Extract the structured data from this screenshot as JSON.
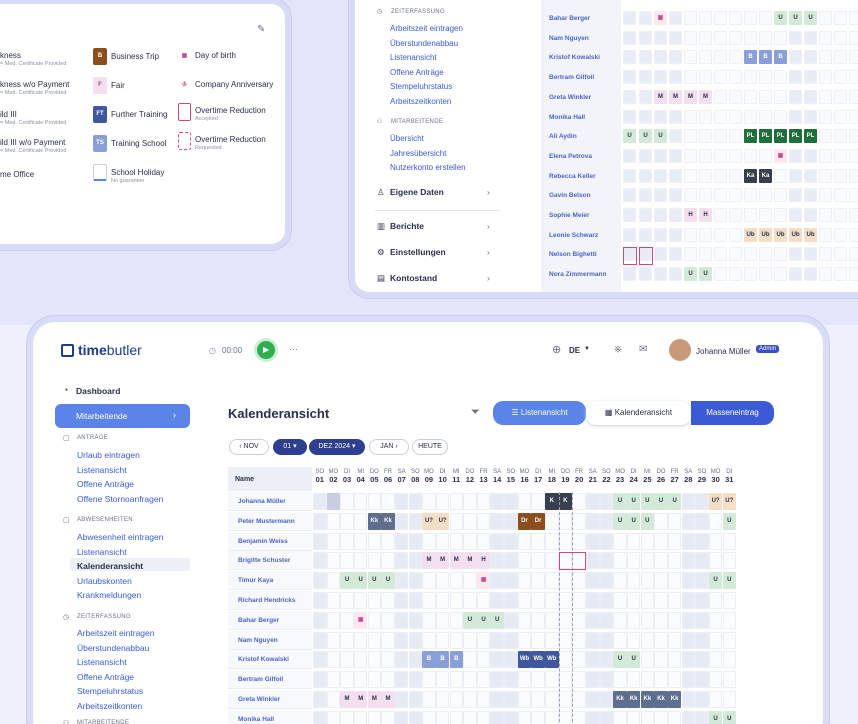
{
  "legend": {
    "items": [
      {
        "label": "kness",
        "sub": "= Med. Certificate Provided",
        "x": 20,
        "y": 47
      },
      {
        "label": "kness w/o Payment",
        "sub": "= Med. Certificate Provided",
        "x": 20,
        "y": 76
      },
      {
        "label": "ild III",
        "sub": "= Med. Certificate Provided",
        "x": 20,
        "y": 106
      },
      {
        "label": "ild III w/o Payment",
        "sub": "= Med. Certificate Provided",
        "x": 20,
        "y": 134
      },
      {
        "label": "me Office",
        "sub": "",
        "x": 20,
        "y": 166
      }
    ],
    "col2": [
      {
        "label": "Business Trip",
        "sub": "",
        "code": "B",
        "color": "#8b4f1f"
      },
      {
        "label": "Fair",
        "sub": "",
        "code": "F",
        "color": "#f4dff0"
      },
      {
        "label": "Further Training",
        "sub": "",
        "code": "FT",
        "color": "#3f579f"
      },
      {
        "label": "Training School",
        "sub": "",
        "code": "TS",
        "color": "#8a9fd8"
      },
      {
        "label": "School Holiday",
        "sub": "No guarantee",
        "code": "",
        "color": "#ffffff"
      }
    ],
    "col3": [
      {
        "label": "Day of birth",
        "sub": ""
      },
      {
        "label": "Company Anniversary",
        "sub": ""
      },
      {
        "label": "Overtime Reduction",
        "sub": "Accepted"
      },
      {
        "label": "Overtime Reduction",
        "sub": "Requested"
      }
    ]
  },
  "topnav": {
    "section_zeit": "ZEITERFASSUNG",
    "zeit_items": [
      "Arbeitszeit eintragen",
      "Überstundenabbau",
      "Listenansicht",
      "Offene Anträge",
      "Stempeluhrstatus",
      "Arbeitszeitkonten"
    ],
    "section_mit": "MITARBEITENDE",
    "mit_items": [
      "Übersicht",
      "Jahresübersicht",
      "Nutzerkonto erstellen"
    ],
    "big": [
      "Eigene Daten",
      "Berichte",
      "Einstellungen",
      "Kontostand"
    ]
  },
  "topnames": [
    "Bahar Berger",
    "Nam Nguyen",
    "Kristof Kowalski",
    "Bertram Gilfoil",
    "Greta Winkler",
    "Monika Hall",
    "Ali Aydin",
    "Elena Petrova",
    "Rebecca Keller",
    "Gavin Belson",
    "Sophie Meier",
    "Leonie Schwarz",
    "Nelson Bighetti",
    "Nora Zimmermann"
  ],
  "header": {
    "brand_a": "time",
    "brand_b": "butler",
    "timer": "00:00",
    "lang": "DE",
    "user": "Johanna Müller",
    "badge": "Admin"
  },
  "sidebar": {
    "dashboard": "Dashboard",
    "active": "Mitarbeitende",
    "sec_antraege": "ANTRÄGE",
    "antraege": [
      "Urlaub eintragen",
      "Listenansicht",
      "Offene Anträge",
      "Offene Stornoanfragen"
    ],
    "sec_abw": "ABWESENHEITEN",
    "abw": [
      "Abwesenheit eintragen",
      "Listenansicht",
      "Kalenderansicht",
      "Urlaubskonten",
      "Krankmeldungen"
    ],
    "sec_zeit": "ZEITERFASSUNG",
    "zeit": [
      "Arbeitszeit eintragen",
      "Überstundenabbau",
      "Listenansicht",
      "Offene Anträge",
      "Stempeluhrstatus",
      "Arbeitszeitkonten"
    ],
    "sec_mit": "MITARBEITENDE"
  },
  "cal": {
    "title": "Kalenderansicht",
    "btn_list": "Listenansicht",
    "btn_cal": "Kalenderansicht",
    "btn_entry": "Masseneintrag",
    "prev": "NOV",
    "day": "01",
    "month": "DEZ 2024",
    "next": "JAN",
    "today": "HEUTE",
    "col_name": "Name",
    "wd": [
      "SO",
      "MO",
      "DI",
      "MI",
      "DO",
      "FR",
      "SA",
      "SO",
      "MO",
      "DI",
      "MI",
      "DO",
      "FR",
      "SA",
      "SO",
      "MO",
      "DI",
      "MI",
      "DO",
      "FR",
      "SA",
      "SO",
      "MO",
      "DI",
      "MI",
      "DO",
      "FR",
      "SA",
      "SO",
      "MO",
      "DI"
    ],
    "dn": [
      "01",
      "02",
      "03",
      "04",
      "05",
      "06",
      "07",
      "08",
      "09",
      "10",
      "11",
      "12",
      "13",
      "14",
      "15",
      "16",
      "17",
      "18",
      "19",
      "20",
      "21",
      "22",
      "23",
      "24",
      "25",
      "26",
      "27",
      "28",
      "29",
      "30",
      "31"
    ],
    "names": [
      "Johanna Müller",
      "Peter Mustermann",
      "Benjamin Weiss",
      "Brigitte Schuster",
      "Timur Kaya",
      "Richard Hendricks",
      "Bahar Berger",
      "Nam Nguyen",
      "Kristof Kowalski",
      "Bertram Gilfoil",
      "Greta Winkler",
      "Monika Hall"
    ]
  }
}
